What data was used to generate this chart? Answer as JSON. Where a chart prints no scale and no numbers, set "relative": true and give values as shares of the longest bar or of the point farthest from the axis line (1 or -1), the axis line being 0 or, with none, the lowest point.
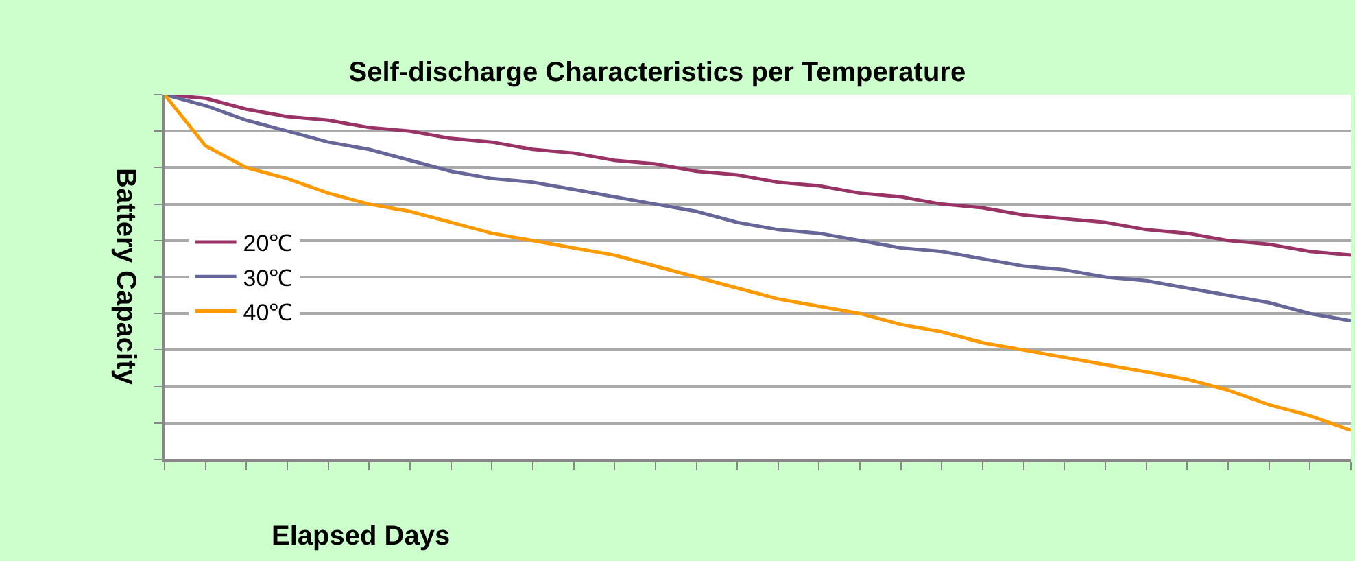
{
  "chart_data": {
    "type": "line",
    "title": "Self-discharge Characteristics per Temperature",
    "xlabel": "Elapsed Days",
    "ylabel": "Battery Capacity",
    "relative": true,
    "grid": "y",
    "legend": "left",
    "marker": "none",
    "line_style": "solid",
    "categories": [
      null,
      null,
      null,
      null,
      null,
      null,
      null,
      null,
      null,
      null,
      null,
      null,
      null,
      null,
      null,
      null,
      null,
      null,
      null,
      null,
      null,
      null,
      null,
      null,
      null,
      null,
      null,
      null,
      null,
      null
    ],
    "series": [
      {
        "name": "20℃",
        "color": "#993366",
        "values": [
          1.0,
          0.99,
          0.96,
          0.94,
          0.93,
          0.91,
          0.9,
          0.88,
          0.87,
          0.85,
          0.84,
          0.82,
          0.81,
          0.79,
          0.78,
          0.76,
          0.75,
          0.73,
          0.72,
          0.7,
          0.69,
          0.67,
          0.66,
          0.65,
          0.63,
          0.62,
          0.6,
          0.59,
          0.57,
          0.56
        ]
      },
      {
        "name": "30℃",
        "color": "#666699",
        "values": [
          1.0,
          0.97,
          0.93,
          0.9,
          0.87,
          0.85,
          0.82,
          0.79,
          0.77,
          0.76,
          0.74,
          0.72,
          0.7,
          0.68,
          0.65,
          0.63,
          0.62,
          0.6,
          0.58,
          0.57,
          0.55,
          0.53,
          0.52,
          0.5,
          0.49,
          0.47,
          0.45,
          0.43,
          0.4,
          0.38
        ]
      },
      {
        "name": "40℃",
        "color": "#ff9900",
        "values": [
          1.0,
          0.86,
          0.8,
          0.77,
          0.73,
          0.7,
          0.68,
          0.65,
          0.62,
          0.6,
          0.58,
          0.56,
          0.53,
          0.5,
          0.47,
          0.44,
          0.42,
          0.4,
          0.37,
          0.35,
          0.32,
          0.3,
          0.28,
          0.26,
          0.24,
          0.22,
          0.19,
          0.15,
          0.12,
          0.08
        ]
      }
    ]
  }
}
